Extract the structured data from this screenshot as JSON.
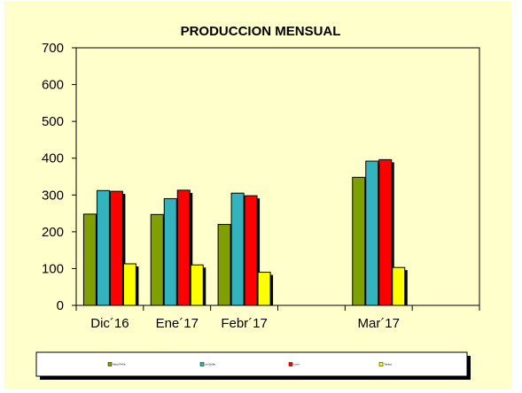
{
  "chart_data": {
    "type": "bar",
    "title": "PRODUCCION MENSUAL",
    "xlabel": "",
    "ylabel": "",
    "categories": [
      "Dic´16",
      "Ene´17",
      "Febr´17",
      "",
      "Mar´17",
      ""
    ],
    "ylim": [
      0,
      700
    ],
    "yticks": [
      0,
      100,
      200,
      300,
      400,
      500,
      600,
      700
    ],
    "grid": false,
    "legend_position": "bottom",
    "series": [
      {
        "name": "Vaca Peña",
        "color": "#7fa000",
        "values": [
          248,
          247,
          220,
          null,
          348,
          null
        ]
      },
      {
        "name": "La Quilla",
        "color": "#33b3be",
        "values": [
          312,
          290,
          305,
          null,
          392,
          null
        ]
      },
      {
        "name": "Lurin",
        "color": "#ff0000",
        "values": [
          310,
          313,
          298,
          null,
          396,
          null
        ]
      },
      {
        "name": "Yaracu",
        "color": "#ffff00",
        "values": [
          113,
          110,
          90,
          null,
          103,
          null
        ]
      }
    ]
  },
  "colors": {
    "plot_background": "#ffffcc",
    "page_background": "#ffffff",
    "frame": "#000000"
  }
}
